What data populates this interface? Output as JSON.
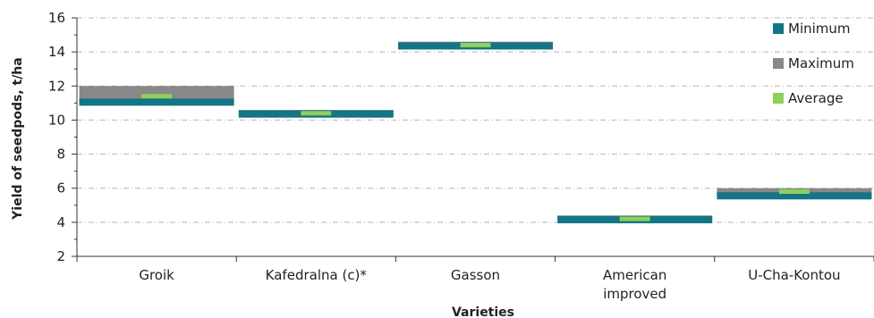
{
  "chart_data": {
    "type": "bar",
    "categories": [
      "Groik",
      "Kafedralna (c)*",
      "Gasson",
      "American improved",
      "U-Cha-Kontou"
    ],
    "category_lines": [
      [
        "Groik"
      ],
      [
        "Kafedralna (c)*"
      ],
      [
        "Gasson"
      ],
      [
        "American",
        "improved"
      ],
      [
        "U-Cha-Kontou"
      ]
    ],
    "series": [
      {
        "name": "Minimum",
        "values": [
          11.0,
          10.3,
          14.3,
          4.1,
          5.5
        ],
        "color": "#137585"
      },
      {
        "name": "Maximum",
        "values": [
          12.0,
          10.6,
          14.6,
          4.4,
          6.0
        ],
        "color": "#888888"
      },
      {
        "name": "Average",
        "values": [
          11.4,
          10.4,
          14.4,
          4.2,
          5.8
        ],
        "color": "#8dd05a"
      }
    ],
    "xlabel": "Varieties",
    "ylabel": "Yield of seedpods, t/ha",
    "ylim": [
      2,
      16
    ],
    "yticks": [
      2,
      4,
      6,
      8,
      10,
      12,
      14,
      16
    ],
    "grid": true,
    "legend_position": "right"
  }
}
